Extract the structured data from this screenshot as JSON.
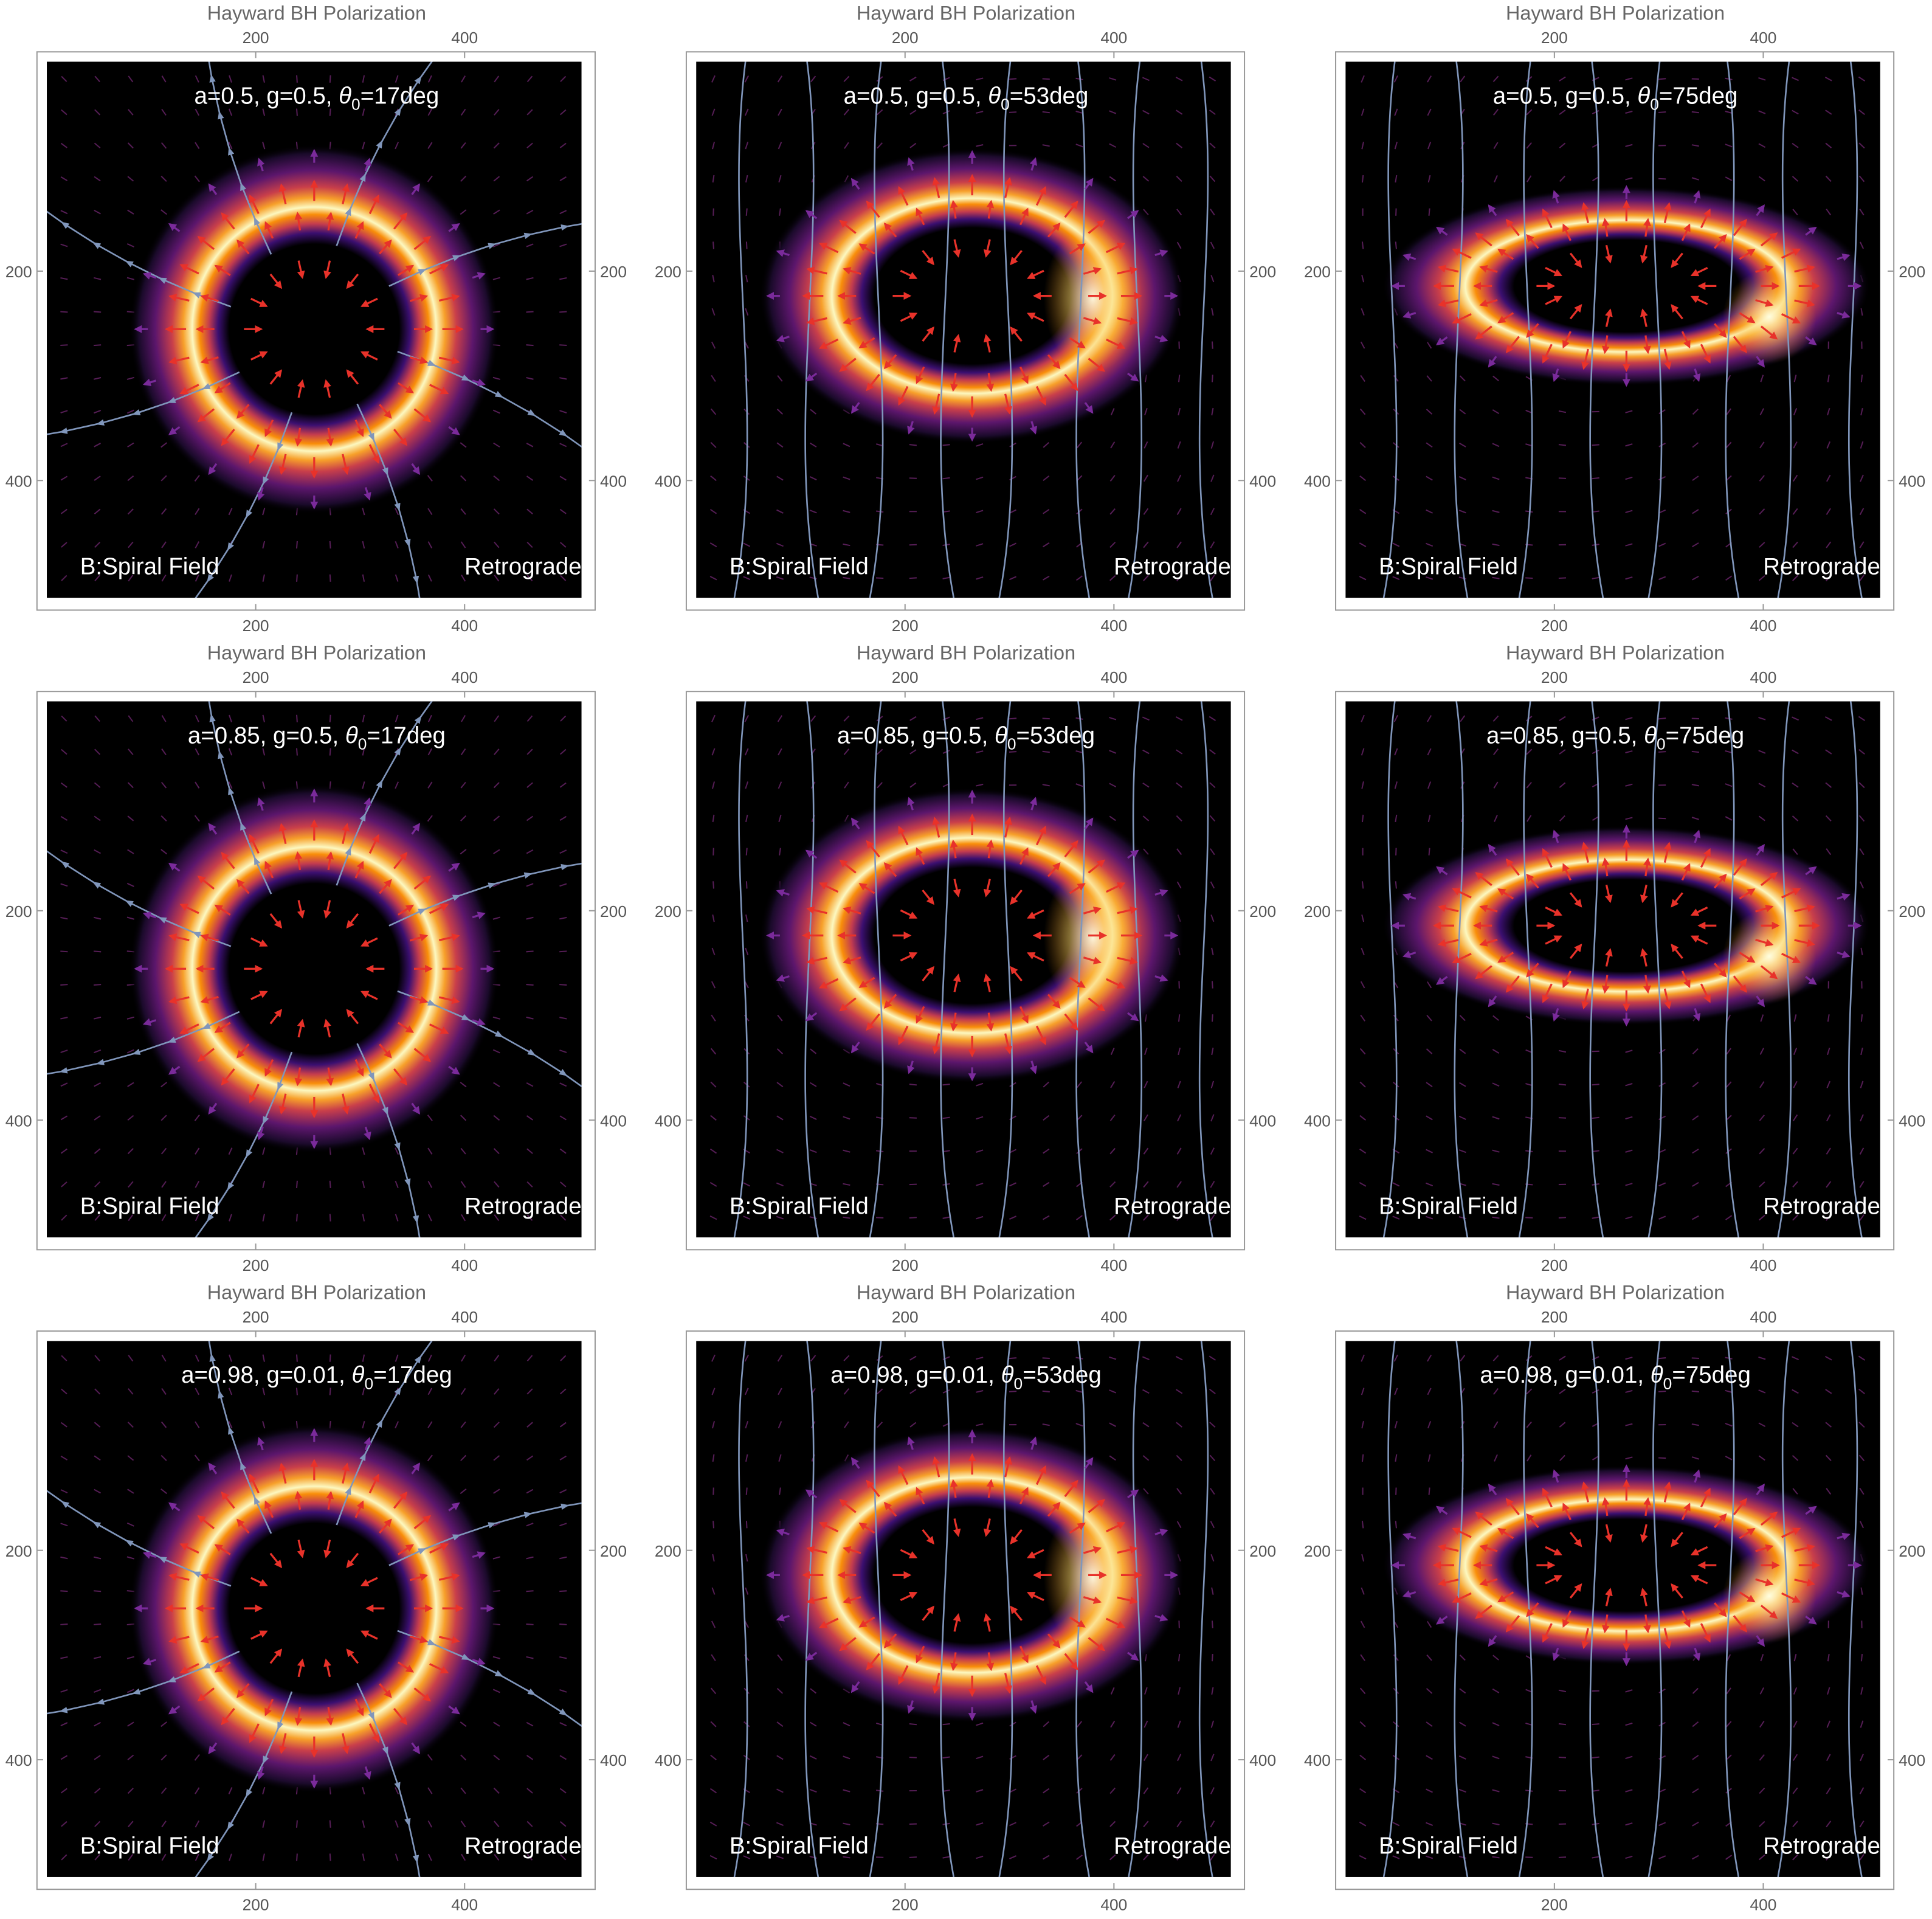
{
  "chart_data": [
    {
      "type": "image",
      "title": "Hayward BH Polarization",
      "annotation": [
        "a=0.5, g=0.5, ",
        "θ",
        "0",
        "=17deg"
      ],
      "labels": [
        "B:Spiral Field",
        "Retrograde"
      ],
      "xlim": [
        0,
        512
      ],
      "ylim": [
        512,
        0
      ],
      "xticks": [
        200,
        400
      ],
      "yticks": [
        200,
        400
      ]
    },
    {
      "type": "image",
      "title": "Hayward BH Polarization",
      "annotation": [
        "a=0.5, g=0.5, ",
        "θ",
        "0",
        "=53deg"
      ],
      "labels": [
        "B:Spiral Field",
        "Retrograde"
      ],
      "xlim": [
        0,
        512
      ],
      "ylim": [
        512,
        0
      ],
      "xticks": [
        200,
        400
      ],
      "yticks": [
        200,
        400
      ]
    },
    {
      "type": "image",
      "title": "Hayward BH Polarization",
      "annotation": [
        "a=0.5, g=0.5, ",
        "θ",
        "0",
        "=75deg"
      ],
      "labels": [
        "B:Spiral Field",
        "Retrograde"
      ],
      "xlim": [
        0,
        512
      ],
      "ylim": [
        512,
        0
      ],
      "xticks": [
        200,
        400
      ],
      "yticks": [
        200,
        400
      ]
    },
    {
      "type": "image",
      "title": "Hayward BH Polarization",
      "annotation": [
        "a=0.85, g=0.5, ",
        "θ",
        "0",
        "=17deg"
      ],
      "labels": [
        "B:Spiral Field",
        "Retrograde"
      ],
      "xlim": [
        0,
        512
      ],
      "ylim": [
        512,
        0
      ],
      "xticks": [
        200,
        400
      ],
      "yticks": [
        200,
        400
      ]
    },
    {
      "type": "image",
      "title": "Hayward BH Polarization",
      "annotation": [
        "a=0.85, g=0.5, ",
        "θ",
        "0",
        "=53deg"
      ],
      "labels": [
        "B:Spiral Field",
        "Retrograde"
      ],
      "xlim": [
        0,
        512
      ],
      "ylim": [
        512,
        0
      ],
      "xticks": [
        200,
        400
      ],
      "yticks": [
        200,
        400
      ]
    },
    {
      "type": "image",
      "title": "Hayward BH Polarization",
      "annotation": [
        "a=0.85, g=0.5, ",
        "θ",
        "0",
        "=75deg"
      ],
      "labels": [
        "B:Spiral Field",
        "Retrograde"
      ],
      "xlim": [
        0,
        512
      ],
      "ylim": [
        512,
        0
      ],
      "xticks": [
        200,
        400
      ],
      "yticks": [
        200,
        400
      ]
    },
    {
      "type": "image",
      "title": "Hayward BH Polarization",
      "annotation": [
        "a=0.98, g=0.01, ",
        "θ",
        "0",
        "=17deg"
      ],
      "labels": [
        "B:Spiral Field",
        "Retrograde"
      ],
      "xlim": [
        0,
        512
      ],
      "ylim": [
        512,
        0
      ],
      "xticks": [
        200,
        400
      ],
      "yticks": [
        200,
        400
      ]
    },
    {
      "type": "image",
      "title": "Hayward BH Polarization",
      "annotation": [
        "a=0.98, g=0.01, ",
        "θ",
        "0",
        "=53deg"
      ],
      "labels": [
        "B:Spiral Field",
        "Retrograde"
      ],
      "xlim": [
        0,
        512
      ],
      "ylim": [
        512,
        0
      ],
      "xticks": [
        200,
        400
      ],
      "yticks": [
        200,
        400
      ]
    },
    {
      "type": "image",
      "title": "Hayward BH Polarization",
      "annotation": [
        "a=0.98, g=0.01, ",
        "θ",
        "0",
        "=75deg"
      ],
      "labels": [
        "B:Spiral Field",
        "Retrograde"
      ],
      "xlim": [
        0,
        512
      ],
      "ylim": [
        512,
        0
      ],
      "xticks": [
        200,
        400
      ],
      "yticks": [
        200,
        400
      ]
    }
  ]
}
